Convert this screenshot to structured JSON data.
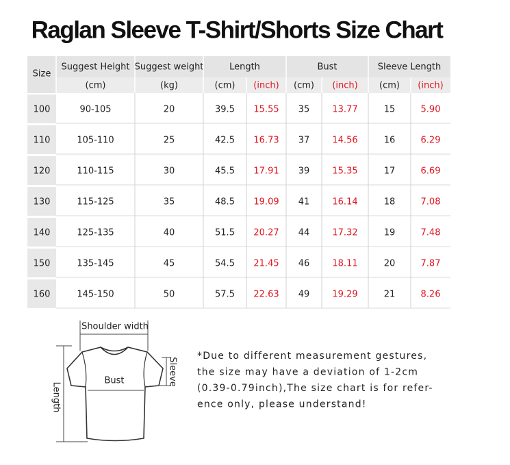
{
  "header": {
    "title": "Raglan Sleeve T-Shirt/Shorts Size Chart"
  },
  "table": {
    "headers": [
      "Size",
      "Suggest Height",
      "Suggest weight",
      "Length",
      "Bust",
      "Sleeve Length"
    ],
    "units": [
      "(cm)",
      "(kg)",
      "(cm)",
      "(inch)",
      "(cm)",
      "(inch)",
      "(cm)",
      "(inch)"
    ],
    "rows": [
      [
        "100",
        "90-105",
        "20",
        "39.5",
        "15.55",
        "35",
        "13.77",
        "15",
        "5.90"
      ],
      [
        "110",
        "105-110",
        "25",
        "42.5",
        "16.73",
        "37",
        "14.56",
        "16",
        "6.29"
      ],
      [
        "120",
        "110-115",
        "30",
        "45.5",
        "17.91",
        "39",
        "15.35",
        "17",
        "6.69"
      ],
      [
        "130",
        "115-125",
        "35",
        "48.5",
        "19.09",
        "41",
        "16.14",
        "18",
        "7.08"
      ],
      [
        "140",
        "125-135",
        "40",
        "51.5",
        "20.27",
        "44",
        "17.32",
        "19",
        "7.48"
      ],
      [
        "150",
        "135-145",
        "45",
        "54.5",
        "21.45",
        "46",
        "18.11",
        "20",
        "7.87"
      ],
      [
        "160",
        "145-150",
        "50",
        "57.5",
        "22.63",
        "49",
        "19.29",
        "21",
        "8.26"
      ]
    ]
  },
  "diagram": {
    "labels": {
      "shoulder_width": "Shoulder width",
      "bust": "Bust",
      "sleeve": "Sleeve",
      "length": "Length"
    }
  },
  "note": {
    "lines": [
      "*Due to different measurement gestures,",
      "the size may have a deviation of 1-2cm",
      "(0.39-0.79inch),The size chart is for refer-",
      "ence only, please understand!"
    ]
  }
}
